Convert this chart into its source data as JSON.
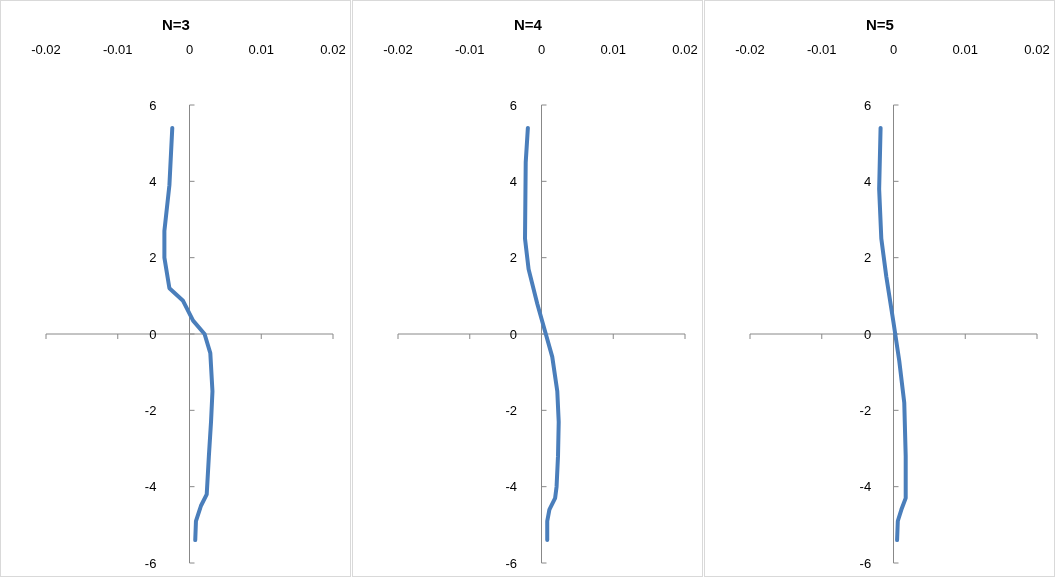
{
  "chart_data": [
    {
      "type": "line",
      "title": "N=3",
      "color": "#4a7ebb",
      "marker": "none",
      "line_style": "solid",
      "xlim": [
        -0.02,
        0.02
      ],
      "ylim": [
        -6,
        6
      ],
      "xticks": [
        -0.02,
        -0.01,
        0,
        0.01,
        0.02
      ],
      "yticks": [
        -6,
        -4,
        -2,
        0,
        2,
        4,
        6
      ],
      "x": [
        -0.0024,
        -0.0028,
        -0.0035,
        -0.0035,
        -0.0028,
        -0.0009,
        0.0005,
        0.0021,
        0.0029,
        0.0032,
        0.003,
        0.0027,
        0.0024,
        0.0016,
        0.0009,
        0.0008
      ],
      "values": [
        5.4,
        3.9,
        2.7,
        2.0,
        1.2,
        0.87,
        0.35,
        0,
        -0.5,
        -1.5,
        -2.3,
        -3.2,
        -4.2,
        -4.5,
        -4.9,
        -5.4
      ]
    },
    {
      "type": "line",
      "title": "N=4",
      "color": "#4a7ebb",
      "marker": "none",
      "line_style": "solid",
      "xlim": [
        -0.02,
        0.02
      ],
      "ylim": [
        -6,
        6
      ],
      "xticks": [
        -0.02,
        -0.01,
        0,
        0.01,
        0.02
      ],
      "yticks": [
        -6,
        -4,
        -2,
        0,
        2,
        4,
        6
      ],
      "x": [
        -0.0019,
        -0.0022,
        -0.0023,
        -0.0018,
        -0.0006,
        0.0006,
        0.0015,
        0.0022,
        0.0024,
        0.0023,
        0.0021,
        0.0019,
        0.0011,
        0.0008,
        0.0008
      ],
      "values": [
        5.4,
        4.5,
        2.5,
        1.7,
        0.8,
        0,
        -0.6,
        -1.5,
        -2.3,
        -3.2,
        -4.0,
        -4.3,
        -4.6,
        -4.9,
        -5.4
      ]
    },
    {
      "type": "line",
      "title": "N=5",
      "color": "#4a7ebb",
      "marker": "none",
      "line_style": "solid",
      "xlim": [
        -0.02,
        0.02
      ],
      "ylim": [
        -6,
        6
      ],
      "xticks": [
        -0.02,
        -0.01,
        0,
        0.01,
        0.02
      ],
      "yticks": [
        -6,
        -4,
        -2,
        0,
        2,
        4,
        6
      ],
      "x": [
        -0.0018,
        -0.002,
        -0.0017,
        -0.001,
        0,
        0.0008,
        0.0015,
        0.0017,
        0.0017,
        0.0011,
        0.0006,
        0.0005
      ],
      "values": [
        5.4,
        3.8,
        2.5,
        1.5,
        0.3,
        -0.7,
        -1.8,
        -3.2,
        -4.3,
        -4.6,
        -4.9,
        -5.4
      ]
    }
  ]
}
